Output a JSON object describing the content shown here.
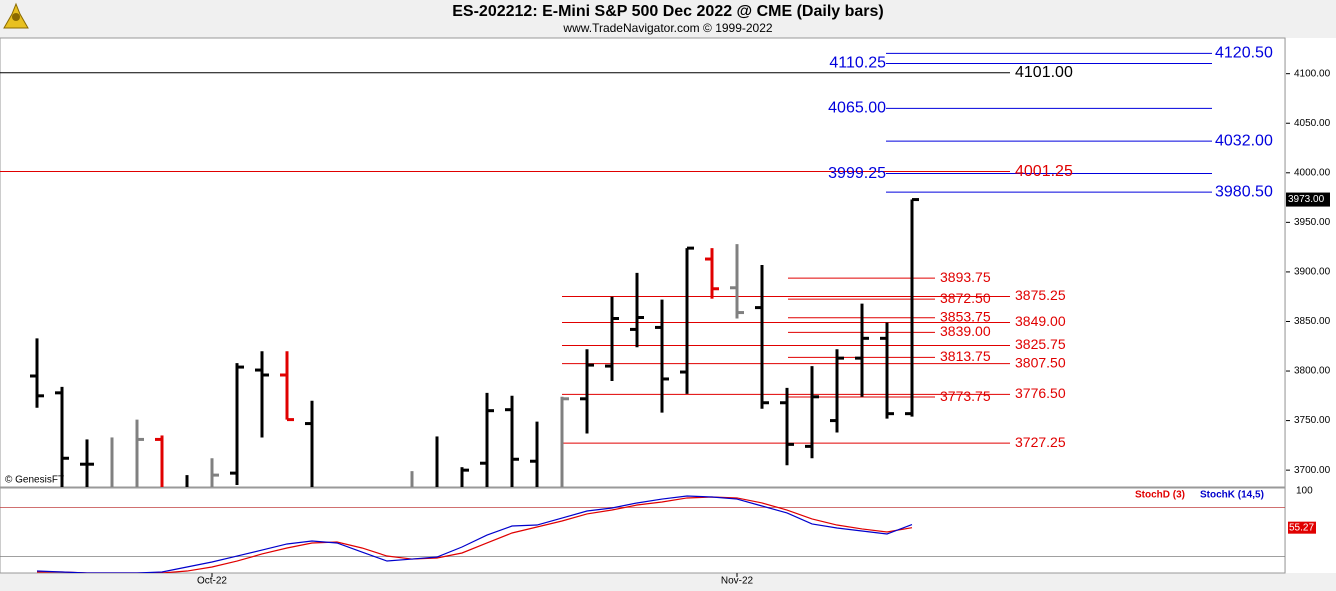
{
  "chart_data": {
    "type": "ohlc",
    "title": "ES-202212:  E-Mini S&P 500 Dec 2022 @ CME  (Daily bars)",
    "subtitle": "www.TradeNavigator.com © 1999-2022",
    "watermark": "© GenesisFT",
    "categories": [
      null,
      null,
      null,
      null,
      null,
      null,
      null,
      "Oct-22",
      null,
      null,
      null,
      null,
      null,
      null,
      null,
      null,
      null,
      null,
      null,
      null,
      null,
      null,
      null,
      null,
      null,
      null,
      null,
      null,
      "Nov-22",
      null,
      null,
      null,
      null,
      null,
      null,
      null
    ],
    "open": [
      3795,
      3778,
      3706,
      null,
      null,
      3731,
      null,
      null,
      3697,
      3801,
      3796,
      3747,
      null,
      null,
      null,
      null,
      null,
      null,
      3707,
      3761,
      3709,
      null,
      3772,
      3805,
      3842,
      3844,
      3799,
      3913,
      3884,
      3864,
      3768,
      3724,
      3750,
      3813,
      3833,
      3757
    ],
    "high": [
      3833,
      3784,
      3731,
      3733,
      3751,
      3735,
      3695,
      3712,
      3808,
      3820,
      3820,
      3770,
      null,
      null,
      null,
      3699,
      3734,
      3703,
      3778,
      3775,
      3749,
      3774,
      3822,
      3875,
      3899,
      3872,
      3924,
      3924,
      3928,
      3907,
      3783,
      3805,
      3822,
      3868,
      3849,
      3973
    ],
    "low": [
      3763,
      3680,
      3680,
      3680,
      3680,
      3680,
      3680,
      3680,
      3685,
      3733,
      3751,
      3680,
      null,
      null,
      null,
      3680,
      3680,
      3680,
      3680,
      3680,
      3680,
      3680,
      3737,
      3790,
      3824,
      3758,
      3777,
      3873,
      3853,
      3762,
      3705,
      3712,
      3738,
      3774,
      3752,
      3754
    ],
    "close": [
      3775,
      3712,
      3706,
      null,
      3731,
      null,
      null,
      3695,
      3804,
      3796,
      3751,
      null,
      null,
      null,
      null,
      null,
      null,
      3700,
      3760,
      3711,
      null,
      3772,
      3806,
      3853,
      3854,
      3792,
      3924,
      3883,
      3859,
      3768,
      3726,
      3774,
      3813,
      3833,
      3757,
      3973
    ],
    "colors": [
      "#000000",
      "#000000",
      "#000000",
      "#808080",
      "#808080",
      "#e00000",
      "#000000",
      "#808080",
      "#000000",
      "#000000",
      "#e00000",
      "#000000",
      null,
      null,
      null,
      "#808080",
      "#000000",
      "#000000",
      "#000000",
      "#000000",
      "#000000",
      "#808080",
      "#000000",
      "#000000",
      "#000000",
      "#000000",
      "#000000",
      "#e00000",
      "#808080",
      "#000000",
      "#000000",
      "#000000",
      "#000000",
      "#000000",
      "#000000",
      "#000000"
    ],
    "ylim": [
      3683,
      4136
    ],
    "yticks": [
      {
        "value": 3700,
        "label": "3700.00"
      },
      {
        "value": 3750,
        "label": "3750.00"
      },
      {
        "value": 3800,
        "label": "3800.00"
      },
      {
        "value": 3850,
        "label": "3850.00"
      },
      {
        "value": 3900,
        "label": "3900.00"
      },
      {
        "value": 3950,
        "label": "3950.00"
      },
      {
        "value": 4000,
        "label": "4000.00"
      },
      {
        "value": 4050,
        "label": "4050.00"
      },
      {
        "value": 4100,
        "label": "4100.00"
      }
    ],
    "last_price": {
      "value": 3973,
      "label": "3973.00"
    },
    "level_groups": [
      {
        "color": "#000000",
        "levels": [
          {
            "value": 4101,
            "label": "4101.00"
          }
        ]
      },
      {
        "color": "#e00000",
        "levels": [
          {
            "value": 4001.25,
            "label": "4001.25"
          }
        ]
      },
      {
        "color": "#0000dd",
        "levels": [
          {
            "value": 4110.25,
            "label": "4110.25"
          },
          {
            "value": 4065,
            "label": "4065.00"
          },
          {
            "value": 3999.25,
            "label": "3999.25"
          }
        ]
      },
      {
        "color": "#0000dd",
        "levels": [
          {
            "value": 4120.5,
            "label": "4120.50"
          },
          {
            "value": 4032,
            "label": "4032.00"
          },
          {
            "value": 3980.5,
            "label": "3980.50"
          }
        ]
      },
      {
        "color": "#e00000",
        "levels": [
          {
            "value": 3893.75,
            "label": "3893.75"
          },
          {
            "value": 3872.5,
            "label": "3872.50"
          },
          {
            "value": 3853.75,
            "label": "3853.75"
          },
          {
            "value": 3839,
            "label": "3839.00"
          },
          {
            "value": 3813.75,
            "label": "3813.75"
          },
          {
            "value": 3773.75,
            "label": "3773.75"
          }
        ]
      },
      {
        "color": "#e00000",
        "levels": [
          {
            "value": 3875.25,
            "label": "3875.25"
          },
          {
            "value": 3849,
            "label": "3849.00"
          },
          {
            "value": 3825.75,
            "label": "3825.75"
          },
          {
            "value": 3807.5,
            "label": "3807.50"
          },
          {
            "value": 3776.5,
            "label": "3776.50"
          },
          {
            "value": 3727.25,
            "label": "3727.25"
          }
        ]
      }
    ],
    "indicator": {
      "ylim": [
        0,
        100
      ],
      "yticks": [
        100
      ],
      "guide_lines": [
        80,
        20
      ],
      "series": [
        {
          "name": "StochD (3)",
          "color": "#e00000",
          "last_label": {
            "value": 55.27,
            "label": "55.27"
          },
          "values": [
            1.2,
            1.2,
            0,
            0,
            0,
            0,
            2.4,
            7.3,
            14.6,
            23.2,
            30.5,
            36.6,
            37.8,
            30.5,
            20.7,
            17,
            18.3,
            24.4,
            36.6,
            48.8,
            56.1,
            63.4,
            72,
            76.8,
            82.9,
            86.6,
            91.5,
            92.7,
            91.5,
            85.4,
            76.8,
            65.9,
            58.5,
            53.7,
            50,
            55.27
          ]
        },
        {
          "name": "StochK (14,5)",
          "color": "#0000cc",
          "values": [
            2.4,
            1.2,
            0,
            0,
            0,
            1.2,
            7.3,
            13.4,
            20.7,
            28,
            35.4,
            39,
            36.6,
            25.6,
            14.6,
            17,
            19.5,
            31.7,
            46.3,
            57.3,
            58.5,
            67,
            75.6,
            79.3,
            85.4,
            90.2,
            93.9,
            92.7,
            90.2,
            81.7,
            73.2,
            59.8,
            54.9,
            51.2,
            47.6,
            59
          ]
        }
      ]
    }
  }
}
